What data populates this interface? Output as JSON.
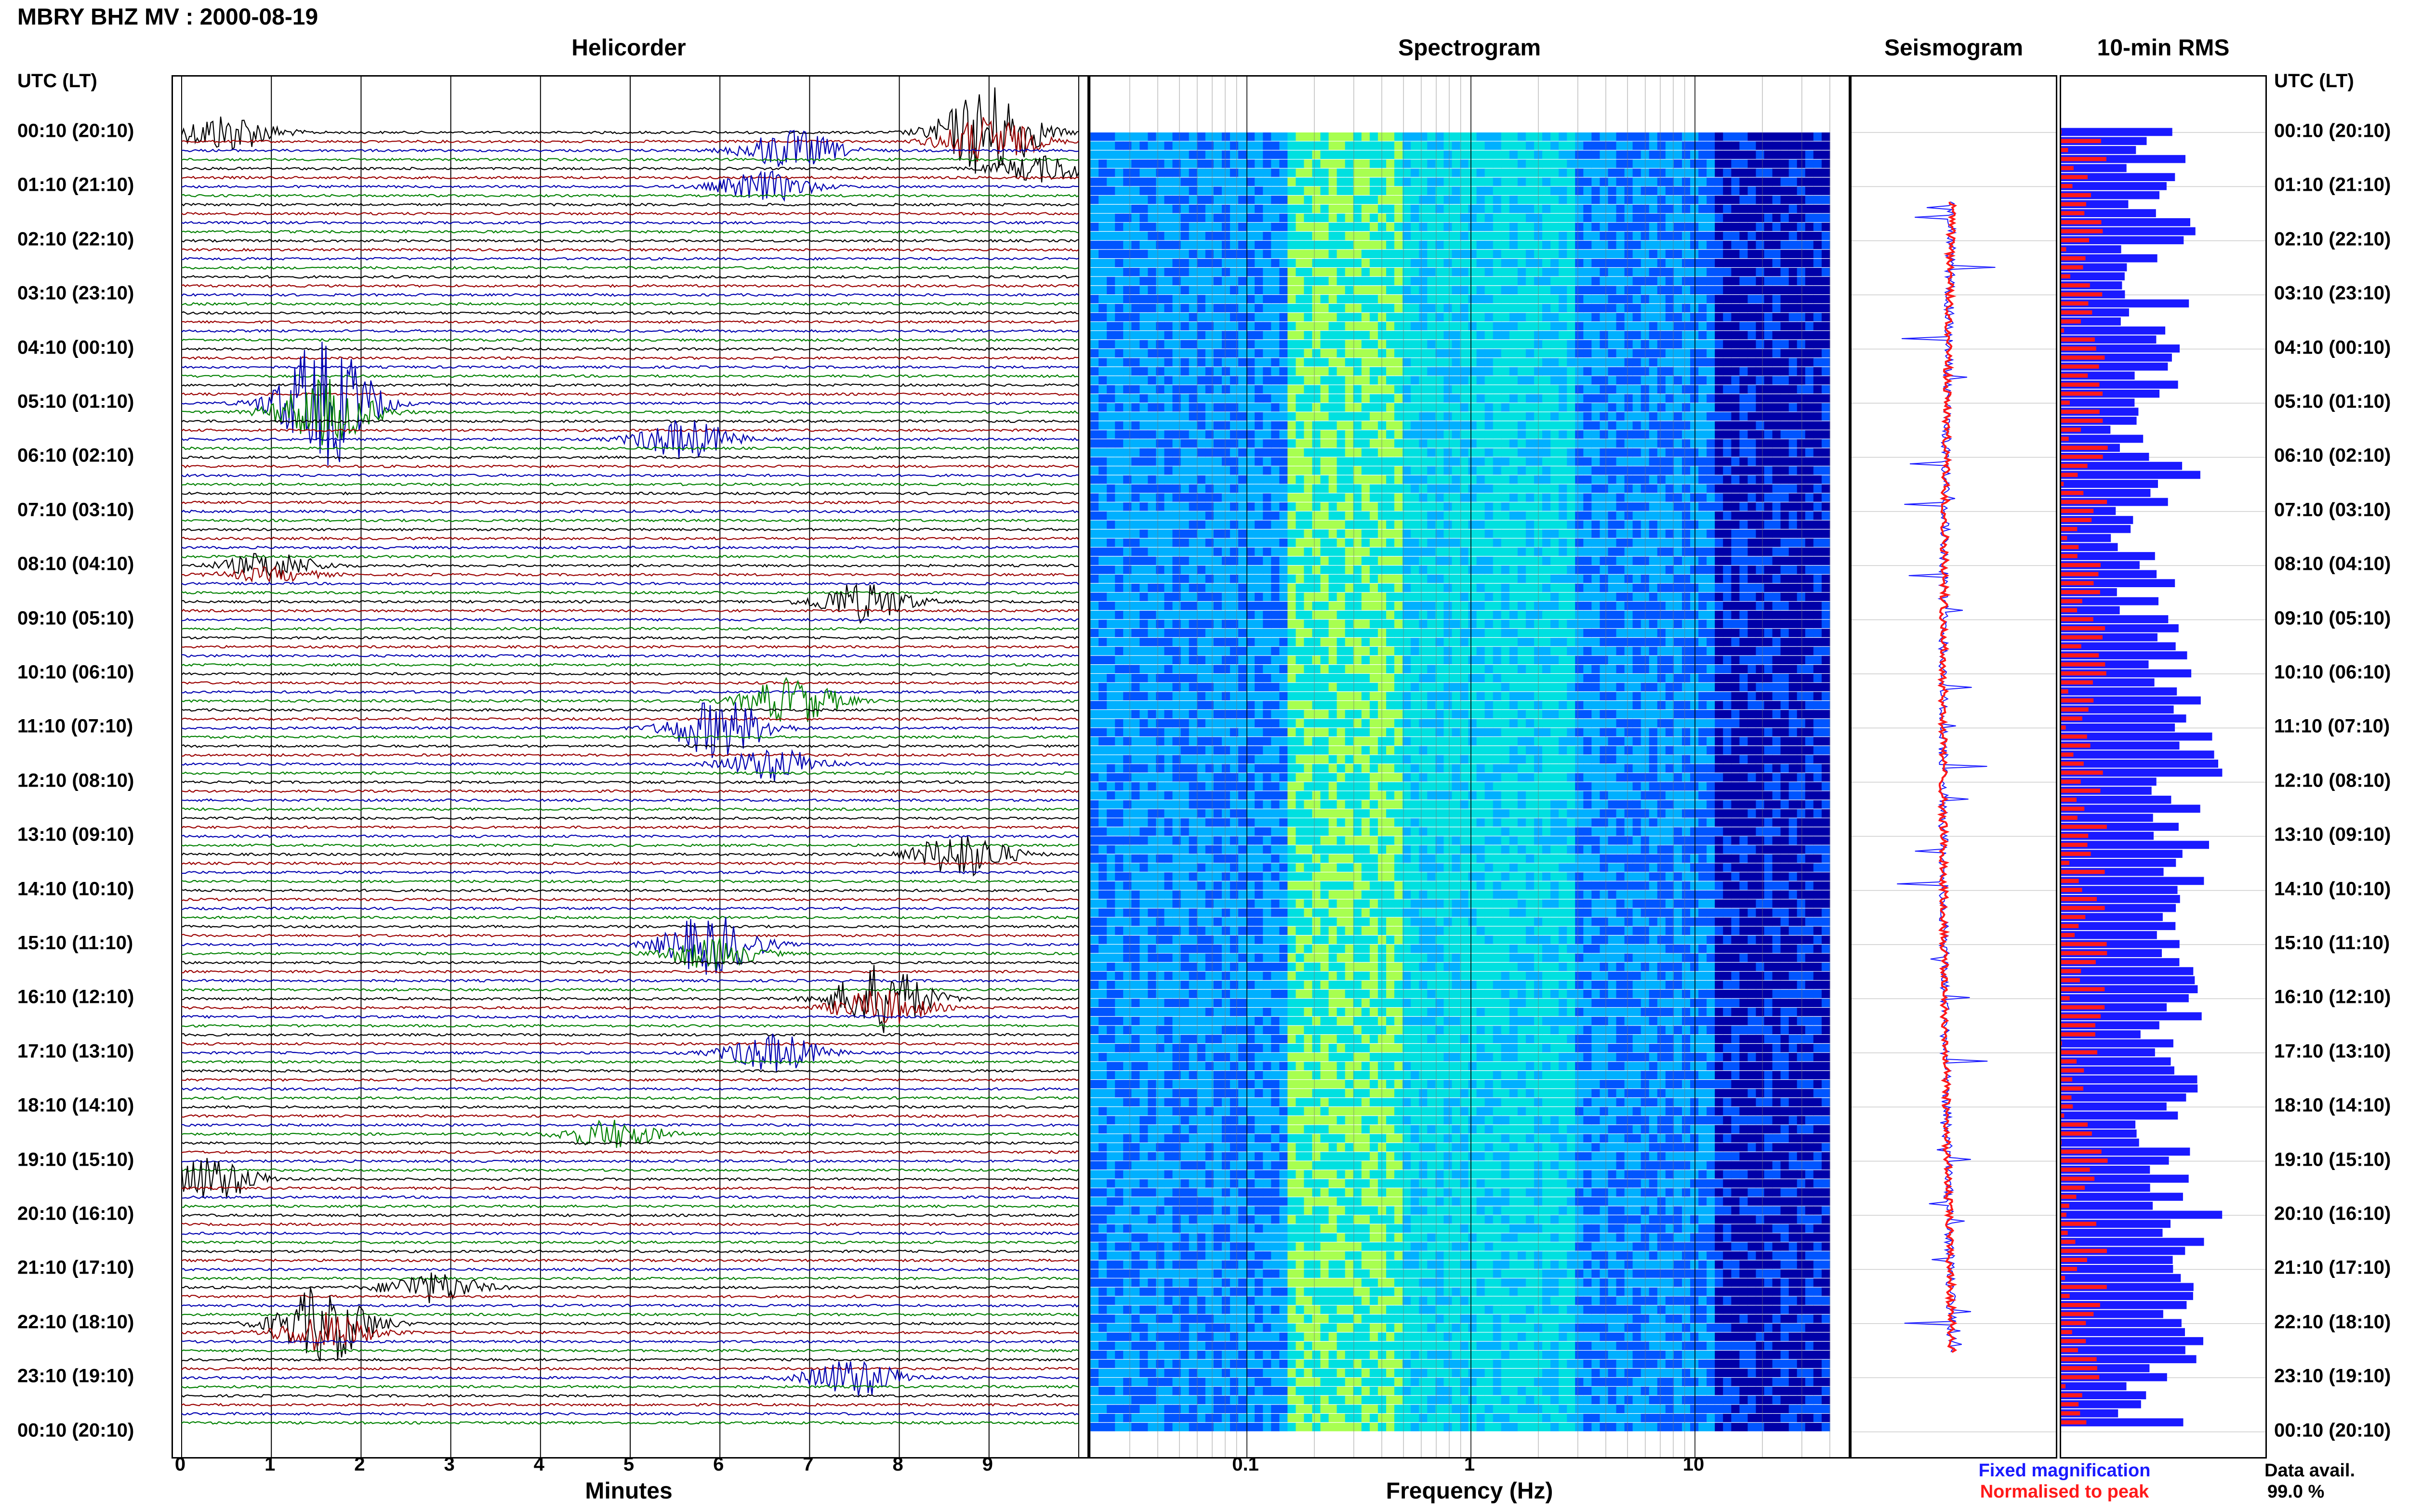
{
  "title": "MBRY BHZ MV : 2000-08-19",
  "panels": {
    "helicorder": "Helicorder",
    "spectrogram": "Spectrogram",
    "seismogram": "Seismogram",
    "rms": "10-min RMS"
  },
  "axes": {
    "utc_header": "UTC (LT)",
    "minutes_label": "Minutes",
    "frequency_label": "Frequency (Hz)"
  },
  "legend": {
    "fixed": "Fixed magnification",
    "normalised": "Normalised to peak",
    "fixed_color": "#1a1aff",
    "normalised_color": "#ff1a1a",
    "data_avail_label": "Data avail.",
    "data_avail_value": "99.0 %"
  },
  "chart_data": [
    {
      "type": "line",
      "title": "Helicorder",
      "xlabel": "Minutes",
      "x_ticks": [
        "0",
        "1",
        "2",
        "3",
        "4",
        "5",
        "6",
        "7",
        "8",
        "9"
      ],
      "xlim": [
        0,
        10
      ],
      "trace_colors": [
        "#000000",
        "#9a0000",
        "#0000b0",
        "#008000"
      ],
      "traces_per_hour": 6,
      "row_labels": [
        "00:10 (20:10)",
        "01:10 (21:10)",
        "02:10 (22:10)",
        "03:10 (23:10)",
        "04:10 (00:10)",
        "05:10 (01:10)",
        "06:10 (02:10)",
        "07:10 (03:10)",
        "08:10 (04:10)",
        "09:10 (05:10)",
        "10:10 (06:10)",
        "11:10 (07:10)",
        "12:10 (08:10)",
        "13:10 (09:10)",
        "14:10 (10:10)",
        "15:10 (11:10)",
        "16:10 (12:10)",
        "17:10 (13:10)",
        "18:10 (14:10)",
        "19:10 (15:10)",
        "20:10 (16:10)",
        "21:10 (17:10)",
        "22:10 (18:10)",
        "23:10 (19:10)",
        "00:10 (20:10)"
      ],
      "events": [
        {
          "hour": 0.0,
          "minute": 0.5,
          "amp": 0.9,
          "dur": 1.2
        },
        {
          "hour": 0.0,
          "minute": 9.0,
          "amp": 2.2,
          "dur": 1.6
        },
        {
          "hour": 0.2,
          "minute": 6.8,
          "amp": 1.6,
          "dur": 1.4
        },
        {
          "hour": 0.6,
          "minute": 9.6,
          "amp": 0.8,
          "dur": 0.8
        },
        {
          "hour": 1.0,
          "minute": 6.5,
          "amp": 0.7,
          "dur": 1.2
        },
        {
          "hour": 5.0,
          "minute": 1.6,
          "amp": 3.0,
          "dur": 2.5
        },
        {
          "hour": 5.6,
          "minute": 5.6,
          "amp": 1.2,
          "dur": 1.4
        },
        {
          "hour": 8.0,
          "minute": 1.0,
          "amp": 0.6,
          "dur": 1.4
        },
        {
          "hour": 8.6,
          "minute": 7.6,
          "amp": 1.2,
          "dur": 1.6
        },
        {
          "hour": 10.4,
          "minute": 6.8,
          "amp": 1.6,
          "dur": 1.4
        },
        {
          "hour": 11.0,
          "minute": 6.0,
          "amp": 1.4,
          "dur": 1.2
        },
        {
          "hour": 11.6,
          "minute": 6.6,
          "amp": 1.0,
          "dur": 1.2
        },
        {
          "hour": 13.2,
          "minute": 8.7,
          "amp": 1.8,
          "dur": 1.6
        },
        {
          "hour": 15.0,
          "minute": 5.9,
          "amp": 1.4,
          "dur": 1.6
        },
        {
          "hour": 16.0,
          "minute": 7.8,
          "amp": 1.6,
          "dur": 1.4
        },
        {
          "hour": 17.0,
          "minute": 6.6,
          "amp": 0.9,
          "dur": 1.2
        },
        {
          "hour": 18.4,
          "minute": 4.8,
          "amp": 1.0,
          "dur": 1.4
        },
        {
          "hour": 19.2,
          "minute": 0.3,
          "amp": 1.8,
          "dur": 1.8
        },
        {
          "hour": 21.2,
          "minute": 2.8,
          "amp": 1.2,
          "dur": 1.6
        },
        {
          "hour": 22.0,
          "minute": 1.6,
          "amp": 1.8,
          "dur": 1.8
        },
        {
          "hour": 23.0,
          "minute": 7.5,
          "amp": 0.9,
          "dur": 1.2
        }
      ]
    },
    {
      "type": "heatmap",
      "title": "Spectrogram",
      "xlabel": "Frequency (Hz)",
      "x_scale": "log",
      "xlim": [
        0.02,
        50
      ],
      "x_ticks": [
        "0.1",
        "1",
        "10"
      ],
      "colormap": [
        "#0000a8",
        "#0055ff",
        "#00b0ff",
        "#00e0e0",
        "#a8ff50",
        "#ffff00"
      ]
    },
    {
      "type": "line",
      "title": "Seismogram",
      "series": [
        {
          "name": "Fixed magnification",
          "color": "#1a1aff"
        },
        {
          "name": "Normalised to peak",
          "color": "#ff1a1a"
        }
      ]
    },
    {
      "type": "bar",
      "title": "10-min RMS",
      "orientation": "horizontal",
      "series": [
        {
          "name": "Fixed magnification",
          "color": "#1a1aff"
        },
        {
          "name": "Normalised to peak",
          "color": "#ff1a1a"
        }
      ],
      "hourly_level": [
        0.45,
        0.5,
        0.4,
        0.45,
        0.5,
        0.35,
        0.65,
        0.3,
        0.4,
        0.55,
        0.6,
        0.7,
        0.65,
        0.6,
        0.6,
        0.75,
        0.6,
        0.55,
        0.5,
        0.5,
        0.7,
        0.65,
        0.6,
        0.4
      ]
    }
  ]
}
